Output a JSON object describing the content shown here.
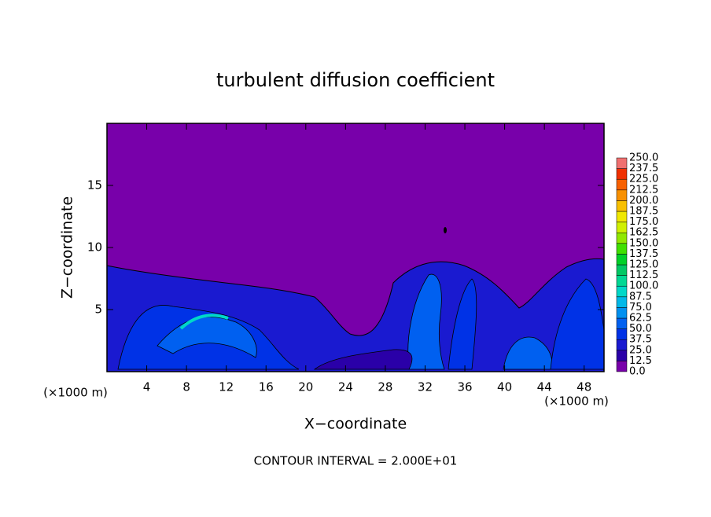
{
  "chart_data": {
    "type": "contour",
    "title": "turbulent diffusion coefficient",
    "xlabel": "X−coordinate",
    "ylabel": "Z−coordinate",
    "xunit": "(×1000 m)",
    "yunit": "(×1000 m)",
    "annotation": "CONTOUR INTERVAL = 2.000E+01",
    "xlim": [
      0,
      50
    ],
    "ylim": [
      0,
      20
    ],
    "xticks": [
      4,
      8,
      12,
      16,
      20,
      24,
      28,
      32,
      36,
      40,
      44,
      48
    ],
    "yticks": [
      5,
      10,
      15
    ],
    "colorbar": {
      "levels": [
        {
          "value": 0,
          "label": "0.0"
        },
        {
          "value": 12.5,
          "label": "12.5"
        },
        {
          "value": 25,
          "label": "25.0"
        },
        {
          "value": 37.5,
          "label": "37.5"
        },
        {
          "value": 50,
          "label": "50.0"
        },
        {
          "value": 62.5,
          "label": "62.5"
        },
        {
          "value": 75,
          "label": "75.0"
        },
        {
          "value": 87.5,
          "label": "87.5"
        },
        {
          "value": 100,
          "label": "100.0"
        },
        {
          "value": 112.5,
          "label": "112.5"
        },
        {
          "value": 125,
          "label": "125.0"
        },
        {
          "value": 137.5,
          "label": "137.5"
        },
        {
          "value": 150,
          "label": "150.0"
        },
        {
          "value": 162.5,
          "label": "162.5"
        },
        {
          "value": 175,
          "label": "175.0"
        },
        {
          "value": 187.5,
          "label": "187.5"
        },
        {
          "value": 200,
          "label": "200.0"
        },
        {
          "value": 212.5,
          "label": "212.5"
        },
        {
          "value": 225,
          "label": "225.0"
        },
        {
          "value": 237.5,
          "label": "237.5"
        },
        {
          "value": 250,
          "label": "250.0"
        }
      ],
      "colors": [
        "#7800aa",
        "#2a00a8",
        "#1a1ad0",
        "#0032e6",
        "#0060f0",
        "#0090f0",
        "#00b8e8",
        "#00d8c8",
        "#00d894",
        "#00c864",
        "#00d028",
        "#40e000",
        "#90e800",
        "#d0f000",
        "#f0e800",
        "#f8c000",
        "#f89000",
        "#f86000",
        "#f03000",
        "#f07070"
      ]
    }
  }
}
